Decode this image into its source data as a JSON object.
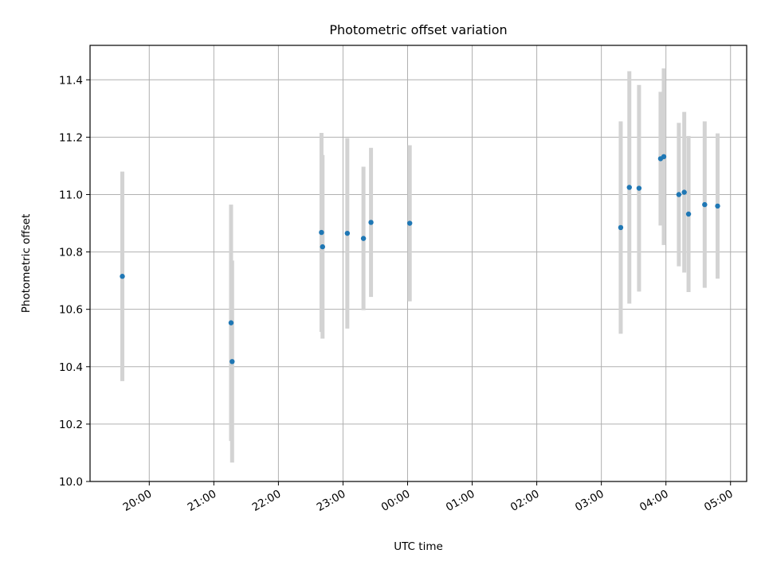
{
  "chart_data": {
    "type": "scatter",
    "title": "Photometric offset variation",
    "xlabel": "UTC time",
    "ylabel": "Photometric offset",
    "ylim": [
      10.0,
      11.52
    ],
    "xlim": [
      "2000-01-01T19:05",
      "2000-01-02T05:15"
    ],
    "x_tick_format": "HH:MM",
    "x_ticks": [
      "20:00",
      "21:00",
      "22:00",
      "23:00",
      "00:00",
      "01:00",
      "02:00",
      "03:00",
      "04:00",
      "05:00"
    ],
    "y_ticks": [
      "10.0",
      "10.2",
      "10.4",
      "10.6",
      "10.8",
      "11.0",
      "11.2",
      "11.4"
    ],
    "grid": true,
    "colors": {
      "points": "#1f77b4",
      "errorbars": "#d3d3d3"
    },
    "points": [
      {
        "time": "19:35",
        "y": 10.715,
        "err": 0.365
      },
      {
        "time": "21:16",
        "y": 10.553,
        "err": 0.412
      },
      {
        "time": "21:17",
        "y": 10.418,
        "err": 0.352
      },
      {
        "time": "22:40",
        "y": 10.868,
        "err": 0.347
      },
      {
        "time": "22:41",
        "y": 10.818,
        "err": 0.32
      },
      {
        "time": "23:04",
        "y": 10.865,
        "err": 0.332
      },
      {
        "time": "23:19",
        "y": 10.847,
        "err": 0.25
      },
      {
        "time": "23:26",
        "y": 10.903,
        "err": 0.26
      },
      {
        "time": "00:02",
        "y": 10.9,
        "err": 0.272
      },
      {
        "time": "03:18",
        "y": 10.885,
        "err": 0.37
      },
      {
        "time": "03:26",
        "y": 11.025,
        "err": 0.405
      },
      {
        "time": "03:35",
        "y": 11.022,
        "err": 0.36
      },
      {
        "time": "03:55",
        "y": 11.125,
        "err": 0.233
      },
      {
        "time": "03:58",
        "y": 11.132,
        "err": 0.308
      },
      {
        "time": "04:12",
        "y": 11.0,
        "err": 0.25
      },
      {
        "time": "04:17",
        "y": 11.008,
        "err": 0.28
      },
      {
        "time": "04:21",
        "y": 10.932,
        "err": 0.272
      },
      {
        "time": "04:36",
        "y": 10.965,
        "err": 0.29
      },
      {
        "time": "04:48",
        "y": 10.96,
        "err": 0.253
      }
    ]
  }
}
